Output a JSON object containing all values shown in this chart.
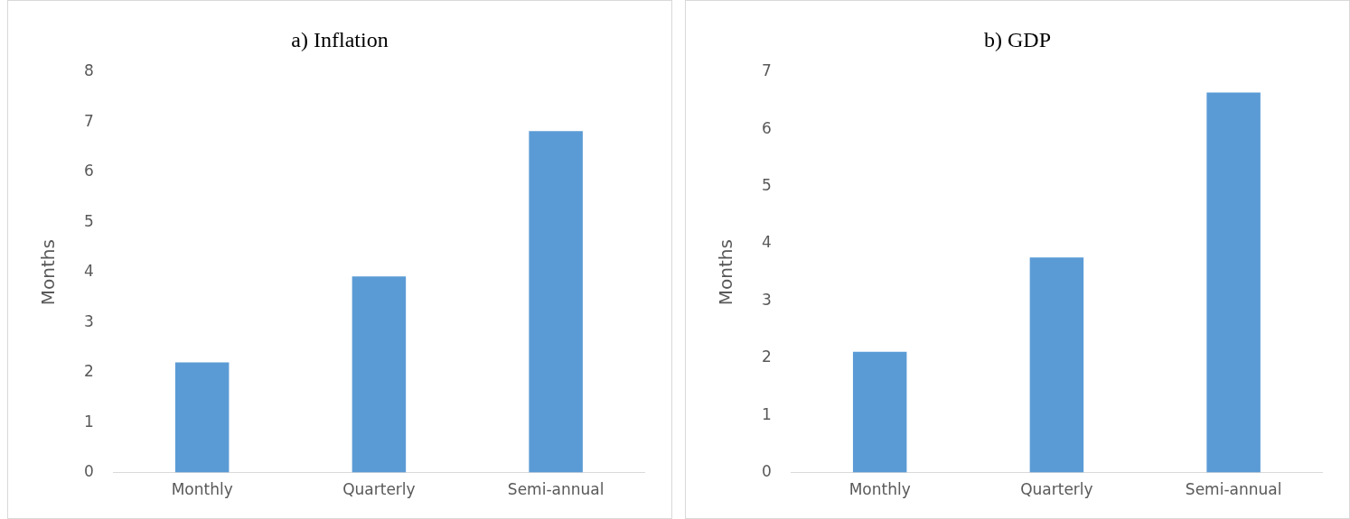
{
  "chart_data": [
    {
      "type": "bar",
      "title": "a) Inflation",
      "ylabel": "Months",
      "categories": [
        "Monthly",
        "Quarterly",
        "Semi-annual"
      ],
      "values": [
        2.2,
        3.92,
        6.82
      ],
      "color": "#5b9bd5",
      "ylim": [
        0,
        8
      ],
      "yticks": [
        0,
        1,
        2,
        3,
        4,
        5,
        6,
        7,
        8
      ],
      "grid": false,
      "legend": false
    },
    {
      "type": "bar",
      "title": "b) GDP",
      "ylabel": "Months",
      "categories": [
        "Monthly",
        "Quarterly",
        "Semi-annual"
      ],
      "values": [
        2.11,
        3.76,
        6.64
      ],
      "color": "#5b9bd5",
      "ylim": [
        0,
        7
      ],
      "yticks": [
        0,
        1,
        2,
        3,
        4,
        5,
        6,
        7
      ],
      "grid": false,
      "legend": false
    }
  ]
}
